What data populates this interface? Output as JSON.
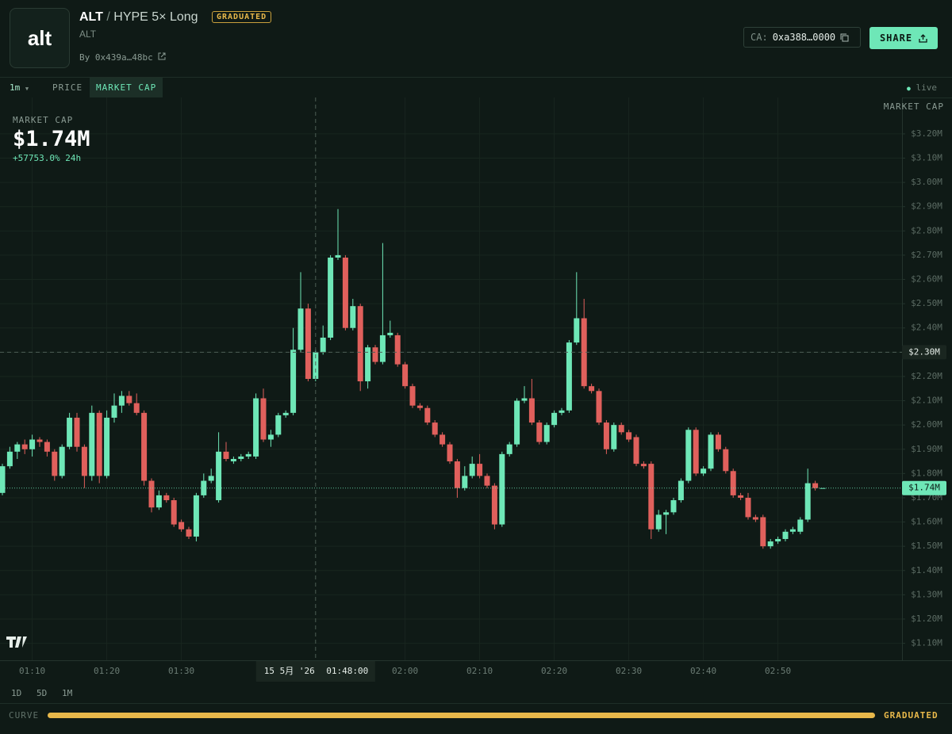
{
  "header": {
    "logo": "alt",
    "name": "ALT",
    "separator": "/",
    "pair": "HYPE 5× Long",
    "badge": "GRADUATED",
    "symbol": "ALT",
    "by": "By 0x439a…48bc",
    "ca_label": "CA:",
    "ca": "0xa388…0000",
    "share": "SHARE"
  },
  "toolbar": {
    "interval": "1m",
    "tabs": [
      "PRICE",
      "MARKET CAP"
    ],
    "status": "live"
  },
  "chart_data": {
    "type": "candlestick",
    "axis_title": "MARKET CAP",
    "legend": {
      "label": "MARKET CAP",
      "value": "$1.74M",
      "change": "+57753.0% 24h"
    },
    "categories": [
      null,
      null,
      null,
      null,
      "01:10",
      null,
      null,
      null,
      null,
      null,
      null,
      null,
      null,
      null,
      "01:20",
      null,
      null,
      null,
      null,
      null,
      null,
      null,
      null,
      null,
      "01:30",
      null,
      null,
      null,
      null,
      null,
      null,
      null,
      null,
      null,
      null,
      null,
      null,
      null,
      null,
      null,
      null,
      null,
      null,
      null,
      null,
      null,
      null,
      null,
      null,
      null,
      null,
      null,
      null,
      null,
      "02:00",
      null,
      null,
      null,
      null,
      null,
      null,
      null,
      null,
      null,
      "02:10",
      null,
      null,
      null,
      null,
      null,
      null,
      null,
      null,
      null,
      "02:20",
      null,
      null,
      null,
      null,
      null,
      null,
      null,
      null,
      null,
      "02:30",
      null,
      null,
      null,
      null,
      null,
      null,
      null,
      null,
      null,
      "02:40",
      null,
      null,
      null,
      null,
      null,
      null,
      null,
      null,
      null,
      "02:50",
      null,
      null,
      null,
      null,
      null,
      null
    ],
    "open": [
      1.72,
      1.83,
      1.89,
      1.92,
      1.9,
      1.94,
      1.93,
      1.89,
      1.79,
      1.91,
      2.03,
      1.91,
      1.79,
      2.05,
      1.79,
      2.03,
      2.08,
      2.12,
      2.09,
      2.05,
      1.77,
      1.66,
      1.71,
      1.69,
      1.6,
      1.57,
      1.54,
      1.71,
      1.77,
      1.69,
      1.89,
      1.85,
      1.86,
      1.87,
      1.87,
      2.11,
      1.94,
      1.96,
      2.04,
      2.05,
      2.31,
      2.48,
      2.19,
      2.3,
      2.36,
      2.69,
      2.69,
      2.4,
      2.49,
      2.18,
      2.32,
      2.26,
      2.37,
      2.37,
      2.25,
      2.16,
      2.08,
      2.07,
      2.01,
      1.96,
      1.92,
      1.85,
      1.74,
      1.79,
      1.84,
      1.79,
      1.75,
      1.59,
      1.88,
      1.92,
      2.1,
      2.11,
      2.01,
      1.93,
      2.0,
      2.05,
      2.06,
      2.34,
      2.44,
      2.16,
      2.14,
      2.01,
      1.9,
      2.0,
      1.97,
      1.95,
      1.84,
      1.84,
      1.57,
      1.63,
      1.64,
      1.69,
      1.77,
      1.98,
      1.8,
      1.82,
      1.96,
      1.9,
      1.81,
      1.71,
      1.7,
      1.62,
      1.62,
      1.5,
      1.52,
      1.53,
      1.56,
      1.56,
      1.61,
      1.76,
      1.74
    ],
    "high": [
      1.84,
      1.91,
      1.93,
      1.94,
      1.96,
      1.95,
      1.94,
      1.9,
      1.92,
      2.05,
      2.05,
      1.92,
      2.08,
      2.06,
      2.06,
      2.13,
      2.14,
      2.14,
      2.13,
      2.06,
      1.78,
      1.73,
      1.72,
      1.7,
      1.61,
      1.58,
      1.72,
      1.8,
      1.82,
      1.97,
      1.93,
      1.87,
      1.88,
      1.89,
      2.13,
      2.15,
      1.98,
      2.05,
      2.06,
      2.4,
      2.63,
      2.5,
      2.31,
      2.41,
      2.7,
      2.89,
      2.7,
      2.52,
      2.5,
      2.33,
      2.33,
      2.75,
      2.43,
      2.38,
      2.26,
      2.17,
      2.09,
      2.08,
      2.02,
      1.97,
      1.93,
      1.86,
      1.83,
      1.87,
      1.88,
      1.8,
      1.76,
      1.89,
      1.93,
      2.11,
      2.16,
      2.19,
      2.02,
      2.01,
      2.06,
      2.07,
      2.35,
      2.63,
      2.52,
      2.17,
      2.15,
      2.02,
      2.01,
      2.01,
      1.98,
      1.96,
      1.85,
      1.85,
      1.65,
      1.65,
      1.7,
      1.78,
      1.99,
      1.99,
      1.83,
      1.97,
      1.97,
      1.91,
      1.82,
      1.72,
      1.72,
      1.63,
      1.63,
      1.53,
      1.54,
      1.57,
      1.58,
      1.62,
      1.82,
      1.77,
      1.74
    ],
    "low": [
      1.71,
      1.82,
      1.86,
      1.88,
      1.87,
      1.91,
      1.87,
      1.77,
      1.78,
      1.9,
      1.89,
      1.74,
      1.77,
      1.76,
      1.78,
      2.01,
      2.05,
      2.08,
      2.04,
      1.75,
      1.64,
      1.65,
      1.68,
      1.58,
      1.56,
      1.53,
      1.52,
      1.7,
      1.76,
      1.68,
      1.85,
      1.84,
      1.85,
      1.86,
      1.86,
      1.93,
      1.91,
      1.95,
      2.03,
      2.04,
      2.3,
      2.18,
      2.18,
      2.29,
      2.35,
      2.68,
      2.39,
      2.39,
      2.14,
      2.15,
      2.25,
      2.25,
      2.36,
      2.24,
      2.15,
      2.07,
      2.06,
      2.0,
      1.95,
      1.91,
      1.84,
      1.7,
      1.73,
      1.78,
      1.78,
      1.74,
      1.57,
      1.58,
      1.87,
      1.91,
      2.09,
      2.0,
      1.92,
      1.92,
      1.99,
      2.04,
      2.05,
      2.33,
      2.15,
      2.13,
      2.0,
      1.88,
      1.89,
      1.96,
      1.93,
      1.83,
      1.82,
      1.53,
      1.56,
      1.55,
      1.63,
      1.68,
      1.76,
      1.79,
      1.79,
      1.81,
      1.89,
      1.8,
      1.7,
      1.69,
      1.61,
      1.6,
      1.49,
      1.49,
      1.51,
      1.52,
      1.55,
      1.55,
      1.6,
      1.73,
      1.74
    ],
    "close": [
      1.83,
      1.89,
      1.92,
      1.9,
      1.94,
      1.93,
      1.89,
      1.79,
      1.91,
      2.03,
      1.91,
      1.79,
      2.05,
      1.79,
      2.03,
      2.08,
      2.12,
      2.09,
      2.05,
      1.77,
      1.66,
      1.71,
      1.69,
      1.59,
      1.57,
      1.54,
      1.71,
      1.77,
      1.79,
      1.89,
      1.86,
      1.86,
      1.87,
      1.88,
      2.11,
      1.94,
      1.96,
      2.04,
      2.05,
      2.31,
      2.48,
      2.19,
      2.3,
      2.36,
      2.69,
      2.7,
      2.4,
      2.49,
      2.18,
      2.32,
      2.26,
      2.37,
      2.38,
      2.25,
      2.16,
      2.08,
      2.07,
      2.01,
      1.96,
      1.92,
      1.85,
      1.74,
      1.79,
      1.84,
      1.79,
      1.75,
      1.59,
      1.88,
      1.92,
      2.1,
      2.11,
      2.01,
      1.93,
      2.0,
      2.05,
      2.06,
      2.34,
      2.44,
      2.16,
      2.14,
      2.01,
      1.9,
      2.0,
      1.97,
      1.94,
      1.84,
      1.83,
      1.57,
      1.63,
      1.64,
      1.69,
      1.77,
      1.98,
      1.8,
      1.82,
      1.96,
      1.9,
      1.81,
      1.71,
      1.7,
      1.62,
      1.61,
      1.5,
      1.52,
      1.53,
      1.56,
      1.57,
      1.61,
      1.76,
      1.74,
      1.74
    ],
    "up_color": "#6ee7b7",
    "down_color": "#e0605c",
    "ylim": [
      1.03,
      3.35
    ],
    "yticks": [
      {
        "value": 1.1,
        "label": "$1.10M"
      },
      {
        "value": 1.2,
        "label": "$1.20M"
      },
      {
        "value": 1.3,
        "label": "$1.30M"
      },
      {
        "value": 1.4,
        "label": "$1.40M"
      },
      {
        "value": 1.5,
        "label": "$1.50M"
      },
      {
        "value": 1.6,
        "label": "$1.60M"
      },
      {
        "value": 1.7,
        "label": "$1.70M"
      },
      {
        "value": 1.8,
        "label": "$1.80M"
      },
      {
        "value": 1.9,
        "label": "$1.90M"
      },
      {
        "value": 2.0,
        "label": "$2.00M"
      },
      {
        "value": 2.1,
        "label": "$2.10M"
      },
      {
        "value": 2.2,
        "label": "$2.20M"
      },
      {
        "value": 2.3,
        "label": "$2.30M"
      },
      {
        "value": 2.4,
        "label": "$2.40M"
      },
      {
        "value": 2.5,
        "label": "$2.50M"
      },
      {
        "value": 2.6,
        "label": "$2.60M"
      },
      {
        "value": 2.7,
        "label": "$2.70M"
      },
      {
        "value": 2.8,
        "label": "$2.80M"
      },
      {
        "value": 2.9,
        "label": "$2.90M"
      },
      {
        "value": 3.0,
        "label": "$3.00M"
      },
      {
        "value": 3.1,
        "label": "$3.10M"
      },
      {
        "value": 3.2,
        "label": "$3.20M"
      }
    ],
    "grid": true,
    "last_price": {
      "value": 1.74,
      "label": "$1.74M"
    },
    "crosshair": {
      "value": 2.3,
      "label": "$2.30M",
      "date": "15 5月 '26",
      "time": "01:48:00"
    }
  },
  "ranges": [
    "1D",
    "5D",
    "1M"
  ],
  "curve": {
    "label": "CURVE",
    "status": "GRADUATED"
  }
}
